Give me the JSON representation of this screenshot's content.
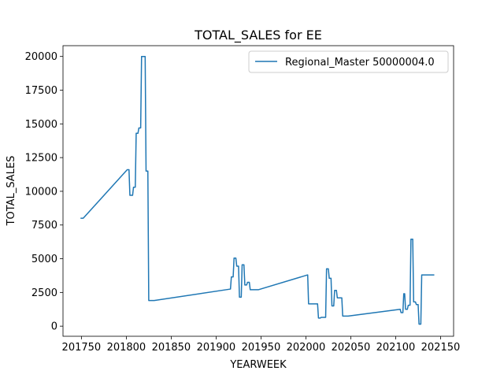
{
  "chart_data": {
    "type": "line",
    "title": "TOTAL_SALES for EE",
    "xlabel": "YEARWEEK",
    "ylabel": "TOTAL_SALES",
    "xlim": [
      201729.5,
      202164.5
    ],
    "ylim": [
      -750,
      20800
    ],
    "xticks": [
      201750,
      201800,
      201850,
      201900,
      201950,
      202000,
      202050,
      202100,
      202150
    ],
    "xtick_labels": [
      "201750",
      "201800",
      "201850",
      "201900",
      "201950",
      "202000",
      "202050",
      "202100",
      "202150"
    ],
    "yticks": [
      0,
      2500,
      5000,
      7500,
      10000,
      12500,
      15000,
      17500,
      20000
    ],
    "ytick_labels": [
      "0",
      "2500",
      "5000",
      "7500",
      "10000",
      "12500",
      "15000",
      "17500",
      "20000"
    ],
    "grid": false,
    "legend_position": "top-right",
    "color": "#1f77b4",
    "series": [
      {
        "name": "Regional_Master 50000004.0",
        "x": [
          201749,
          201752,
          201801,
          201803,
          201804,
          201807,
          201808,
          201810,
          201811,
          201813,
          201814,
          201816,
          201817,
          201821,
          201822,
          201824,
          201825,
          201827,
          201828,
          201830,
          201831,
          201916,
          201917,
          201919,
          201920,
          201922,
          201923,
          201925,
          201926,
          201928,
          201929,
          201931,
          201932,
          201934,
          201935,
          201937,
          201938,
          201940,
          201941,
          201943,
          201944,
          201946,
          201947,
          202002,
          202003,
          202005,
          202006,
          202013,
          202014,
          202016,
          202017,
          202022,
          202023,
          202025,
          202026,
          202028,
          202029,
          202031,
          202032,
          202034,
          202035,
          202037,
          202038,
          202040,
          202041,
          202043,
          202044,
          202046,
          202047,
          202105,
          202106,
          202108,
          202109,
          202110,
          202111,
          202113,
          202114,
          202116,
          202117,
          202119,
          202120,
          202122,
          202123,
          202125,
          202126,
          202128,
          202129,
          202131,
          202132,
          202134,
          202135,
          202137,
          202138,
          202140,
          202141,
          202143
        ],
        "values": [
          8000,
          8000,
          11600,
          11600,
          9700,
          9700,
          10300,
          10300,
          14300,
          14300,
          14700,
          14700,
          20000,
          20000,
          11500,
          11500,
          1900,
          1900,
          1900,
          1900,
          1900,
          2750,
          3650,
          3650,
          5050,
          5050,
          4450,
          4450,
          2150,
          2150,
          4550,
          4550,
          3050,
          3050,
          3250,
          3250,
          2700,
          2700,
          2700,
          2700,
          2700,
          2700,
          2700,
          3800,
          1650,
          1650,
          1650,
          1650,
          600,
          600,
          650,
          650,
          4250,
          4250,
          3550,
          3550,
          1500,
          1500,
          2650,
          2650,
          2100,
          2100,
          2100,
          2100,
          750,
          750,
          750,
          750,
          750,
          1250,
          1000,
          1000,
          2400,
          2400,
          1250,
          1250,
          1550,
          1550,
          6450,
          6450,
          1800,
          1800,
          1600,
          1600,
          150,
          150,
          3800,
          3800,
          3800,
          3800,
          3800,
          3800,
          3800,
          3800,
          3800,
          3800
        ]
      }
    ]
  }
}
